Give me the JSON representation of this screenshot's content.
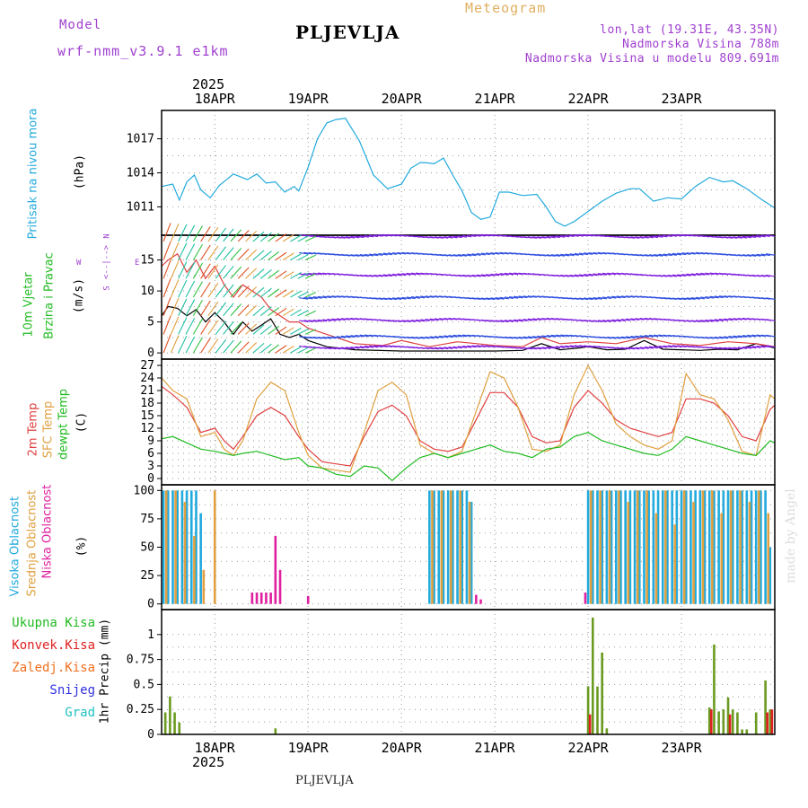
{
  "header": {
    "model_label": "Model",
    "model_name": "wrf-nmm_v3.9.1 e1km",
    "station": "PLJEVLJA",
    "product": "Meteogram",
    "lonlat": "lon,lat (19.31E, 43.35N)",
    "altitude": "Nadmorska Visina 788m",
    "model_altitude": "Nadmorska Visina u modelu 809.691m",
    "footer_station": "PLJEVLJA",
    "watermark": "made by Angel",
    "year": "2025",
    "colors": {
      "model": "#a040d0",
      "station": "#000000",
      "product": "#e0b060",
      "lonlat": "#a040d0"
    }
  },
  "x_axis": {
    "days": [
      "18APR",
      "19APR",
      "20APR",
      "21APR",
      "22APR",
      "23APR"
    ],
    "day_positions": [
      1,
      2,
      3,
      4,
      5,
      6
    ],
    "range": [
      0.43,
      7.0
    ],
    "year": "2025"
  },
  "panels": {
    "pressure": {
      "label": "Pritisak na nivou mora",
      "unit": "(hPa)",
      "label_color": "#22aadd"
    },
    "wind": {
      "label1": "10m Vjetar",
      "label2": "Brzina i Pravac",
      "unit": "(m/s)",
      "label_color": "#22bb22",
      "compass": [
        "N",
        "<--|-->",
        "W",
        "E",
        "S"
      ]
    },
    "temp": {
      "label1": "2m Temp",
      "label2": "SFC Temp",
      "label3": "dewpt Temp",
      "unit": "(C)",
      "colors": [
        "#e04040",
        "#e0a040",
        "#20bb20"
      ]
    },
    "cloud": {
      "label1": "Visoka Oblacnost",
      "label2": "Srednja Oblacnost",
      "label3": "Niska Oblacnost",
      "unit": "(%)",
      "colors": [
        "#22aadd",
        "#e0a040",
        "#e020a0"
      ]
    },
    "precip": {
      "labels": [
        "Ukupna Kisa",
        "Konvek.Kisa",
        "Zaledj.Kisa",
        "Snijeg",
        "Grad"
      ],
      "unit": "1hr Precip (mm)",
      "colors": [
        "#20bb20",
        "#e02020",
        "#f07020",
        "#3030e0",
        "#20c0c0"
      ]
    }
  },
  "chart_data": [
    {
      "type": "line",
      "title": "Pritisak na nivou mora",
      "ylabel": "(hPa)",
      "ylim": [
        1008.5,
        1019.5
      ],
      "yticks": [
        1011,
        1014,
        1017
      ],
      "series": [
        {
          "color": "#22aadd",
          "x": [
            0.43,
            0.55,
            0.62,
            0.7,
            0.78,
            0.85,
            0.95,
            1.05,
            1.2,
            1.35,
            1.45,
            1.55,
            1.65,
            1.75,
            1.85,
            1.9,
            2.0,
            2.1,
            2.2,
            2.3,
            2.4,
            2.55,
            2.7,
            2.85,
            3.0,
            3.1,
            3.2,
            3.25,
            3.35,
            3.45,
            3.55,
            3.65,
            3.75,
            3.85,
            3.95,
            4.05,
            4.15,
            4.3,
            4.45,
            4.55,
            4.65,
            4.75,
            4.85,
            5.0,
            5.15,
            5.3,
            5.45,
            5.55,
            5.7,
            5.85,
            6.0,
            6.15,
            6.3,
            6.45,
            6.55,
            6.7,
            6.85,
            7.0
          ],
          "y": [
            1012.8,
            1013.0,
            1011.6,
            1013.2,
            1013.8,
            1012.5,
            1011.8,
            1012.9,
            1013.9,
            1013.4,
            1013.9,
            1013.1,
            1013.2,
            1012.3,
            1012.8,
            1012.4,
            1014.5,
            1017.0,
            1018.4,
            1018.7,
            1018.8,
            1016.8,
            1013.8,
            1012.6,
            1013.0,
            1014.4,
            1014.9,
            1014.9,
            1014.8,
            1015.3,
            1013.8,
            1012.4,
            1010.5,
            1009.9,
            1010.1,
            1012.3,
            1012.3,
            1012.0,
            1012.1,
            1011.0,
            1009.7,
            1009.3,
            1009.7,
            1010.6,
            1011.5,
            1012.2,
            1012.6,
            1012.6,
            1011.5,
            1011.8,
            1011.7,
            1012.8,
            1013.6,
            1013.2,
            1013.3,
            1012.6,
            1011.7,
            1010.9
          ]
        }
      ]
    },
    {
      "type": "line",
      "title": "10m Vjetar Brzina i Pravac",
      "ylabel": "(m/s)",
      "ylim": [
        -1,
        19
      ],
      "yticks": [
        0,
        5,
        10,
        15
      ],
      "series": [
        {
          "name": "speed",
          "color": "#000000",
          "x": [
            0.43,
            0.5,
            0.6,
            0.7,
            0.8,
            0.9,
            1.0,
            1.1,
            1.2,
            1.3,
            1.4,
            1.5,
            1.6,
            1.7,
            1.8,
            1.9,
            2.0,
            2.2,
            2.5,
            3.0,
            3.5,
            4.0,
            4.3,
            4.5,
            4.7,
            4.9,
            5.0,
            5.2,
            5.4,
            5.6,
            5.8,
            6.0,
            6.2,
            6.4,
            6.6,
            6.8,
            7.0
          ],
          "y": [
            6,
            7.5,
            7.2,
            6.0,
            7.0,
            5.0,
            6.5,
            5.0,
            3.0,
            5.0,
            3.5,
            4.5,
            5.5,
            3.0,
            2.5,
            3.0,
            2.0,
            1.0,
            0.5,
            0.3,
            0.3,
            0.3,
            0.4,
            1.5,
            0.5,
            0.8,
            1.0,
            0.5,
            0.6,
            2.0,
            0.6,
            0.5,
            0.4,
            0.6,
            0.5,
            1.5,
            0.8
          ]
        },
        {
          "name": "gust",
          "color": "#e04040",
          "x": [
            0.43,
            0.5,
            0.6,
            0.7,
            0.8,
            0.9,
            1.0,
            1.1,
            1.2,
            1.3,
            1.4,
            1.5,
            1.6,
            1.7,
            1.8,
            1.9,
            2.0,
            2.2,
            2.5,
            2.8,
            3.0,
            3.3,
            3.6,
            4.0,
            4.3,
            4.5,
            4.7,
            5.0,
            5.3,
            5.6,
            5.9,
            6.2,
            6.5,
            6.8,
            7.0
          ],
          "y": [
            14,
            15,
            16,
            13,
            15,
            12,
            14,
            11,
            9,
            11,
            10,
            9,
            7,
            6,
            5,
            5,
            4,
            3,
            1.5,
            1.2,
            2.0,
            1.0,
            1.8,
            1.2,
            1.0,
            2.5,
            1.5,
            1.8,
            1.5,
            2.5,
            1.5,
            1.2,
            1.8,
            1.5,
            1.0
          ]
        }
      ]
    },
    {
      "type": "line",
      "title": "2m Temp / SFC Temp / dewpt Temp",
      "ylabel": "(C)",
      "ylim": [
        -1.5,
        28.5
      ],
      "yticks": [
        0,
        3,
        6,
        9,
        12,
        15,
        18,
        21,
        24,
        27
      ],
      "series": [
        {
          "name": "2m Temp",
          "color": "#e04040",
          "x": [
            0.43,
            0.55,
            0.7,
            0.85,
            1.0,
            1.1,
            1.2,
            1.3,
            1.45,
            1.6,
            1.75,
            1.9,
            2.0,
            2.15,
            2.3,
            2.45,
            2.6,
            2.75,
            2.9,
            3.05,
            3.2,
            3.35,
            3.5,
            3.65,
            3.8,
            3.95,
            4.1,
            4.25,
            4.4,
            4.55,
            4.7,
            4.85,
            5.0,
            5.15,
            5.3,
            5.45,
            5.6,
            5.75,
            5.9,
            6.05,
            6.2,
            6.35,
            6.5,
            6.65,
            6.8,
            6.95,
            7.0
          ],
          "y": [
            22,
            20,
            17,
            11,
            12,
            9,
            7,
            10,
            15,
            17,
            15,
            10,
            7,
            4,
            3.5,
            3,
            10,
            16,
            17.5,
            15,
            9,
            7,
            6.5,
            7.5,
            14,
            20.5,
            20.5,
            17,
            10,
            8.5,
            9,
            17,
            21,
            18,
            14,
            12,
            11,
            10,
            11,
            19,
            19,
            18,
            15,
            10,
            9,
            16.5,
            17.5
          ]
        },
        {
          "name": "SFC Temp",
          "color": "#e0a040",
          "x": [
            0.43,
            0.55,
            0.7,
            0.85,
            1.0,
            1.1,
            1.2,
            1.3,
            1.45,
            1.6,
            1.75,
            1.9,
            2.0,
            2.15,
            2.3,
            2.45,
            2.6,
            2.75,
            2.9,
            3.05,
            3.2,
            3.35,
            3.5,
            3.65,
            3.8,
            3.95,
            4.1,
            4.25,
            4.4,
            4.55,
            4.7,
            4.85,
            5.0,
            5.15,
            5.3,
            5.45,
            5.6,
            5.75,
            5.9,
            6.05,
            6.2,
            6.35,
            6.5,
            6.65,
            6.8,
            6.95,
            7.0
          ],
          "y": [
            24,
            21,
            19,
            10,
            11,
            7,
            5.5,
            9,
            19,
            23,
            21,
            11,
            5.5,
            2.5,
            2,
            1.5,
            11,
            21,
            23,
            20,
            8,
            6,
            5,
            6.5,
            16,
            25.5,
            24,
            17,
            7,
            6.5,
            8,
            20,
            27,
            21,
            13,
            10,
            8,
            7,
            9,
            25,
            20,
            19,
            14,
            6.5,
            5.5,
            20,
            19
          ]
        },
        {
          "name": "dewpt Temp",
          "color": "#20bb20",
          "x": [
            0.43,
            0.55,
            0.7,
            0.85,
            1.0,
            1.1,
            1.2,
            1.3,
            1.45,
            1.6,
            1.75,
            1.9,
            2.0,
            2.15,
            2.3,
            2.45,
            2.6,
            2.75,
            2.9,
            3.05,
            3.2,
            3.35,
            3.5,
            3.65,
            3.8,
            3.95,
            4.1,
            4.25,
            4.4,
            4.55,
            4.7,
            4.85,
            5.0,
            5.15,
            5.3,
            5.45,
            5.6,
            5.75,
            5.9,
            6.05,
            6.2,
            6.35,
            6.5,
            6.65,
            6.8,
            6.95,
            7.0
          ],
          "y": [
            9.5,
            10,
            8.5,
            7,
            6.5,
            6,
            5.5,
            6,
            6.5,
            5.5,
            4.5,
            5,
            3,
            2.5,
            1,
            0.5,
            3,
            2.5,
            -0.5,
            2.5,
            5,
            6,
            5,
            6,
            7,
            8,
            6.5,
            6,
            5,
            7,
            7.5,
            10,
            11,
            9,
            8,
            7,
            6,
            5.5,
            7,
            10,
            9,
            8,
            7,
            6,
            5.5,
            9,
            8.5
          ]
        }
      ]
    },
    {
      "type": "bar",
      "title": "Visoka / Srednja / Niska Oblacnost",
      "ylabel": "(%)",
      "ylim": [
        -5,
        105
      ],
      "yticks": [
        0,
        25,
        50,
        75,
        100
      ],
      "series": [
        {
          "name": "Visoka Oblacnost",
          "color": "#22aadd",
          "x": [
            0.45,
            0.5,
            0.55,
            0.6,
            0.65,
            0.7,
            0.75,
            0.8,
            0.85,
            3.3,
            3.35,
            3.4,
            3.45,
            3.5,
            3.55,
            3.6,
            3.65,
            3.7,
            3.75,
            5.0,
            5.05,
            5.1,
            5.15,
            5.2,
            5.25,
            5.3,
            5.35,
            5.4,
            5.45,
            5.5,
            5.55,
            5.6,
            5.65,
            5.7,
            5.75,
            5.8,
            5.85,
            5.9,
            5.95,
            6.0,
            6.05,
            6.1,
            6.15,
            6.2,
            6.25,
            6.3,
            6.35,
            6.4,
            6.45,
            6.5,
            6.55,
            6.6,
            6.65,
            6.7,
            6.75,
            6.8,
            6.85,
            6.9,
            6.95
          ],
          "y": [
            100,
            100,
            100,
            100,
            100,
            100,
            100,
            100,
            80,
            100,
            100,
            100,
            100,
            100,
            100,
            100,
            100,
            100,
            90,
            100,
            100,
            100,
            100,
            100,
            100,
            100,
            100,
            100,
            100,
            100,
            100,
            100,
            100,
            100,
            100,
            100,
            100,
            100,
            100,
            100,
            100,
            100,
            100,
            100,
            100,
            100,
            100,
            100,
            100,
            100,
            100,
            100,
            100,
            100,
            100,
            100,
            100,
            100,
            50
          ]
        },
        {
          "name": "Srednja Oblacnost",
          "color": "#e0a040",
          "x": [
            0.48,
            0.58,
            0.68,
            0.78,
            0.88,
            1.0,
            3.33,
            3.43,
            3.53,
            3.63,
            3.73,
            5.03,
            5.13,
            5.23,
            5.33,
            5.43,
            5.53,
            5.63,
            5.73,
            5.83,
            5.93,
            6.03,
            6.13,
            6.23,
            6.33,
            6.43,
            6.53,
            6.63,
            6.73,
            6.83,
            6.93
          ],
          "y": [
            100,
            100,
            90,
            60,
            30,
            100,
            100,
            100,
            100,
            100,
            90,
            100,
            100,
            100,
            100,
            90,
            100,
            100,
            80,
            100,
            70,
            100,
            90,
            100,
            100,
            80,
            100,
            100,
            90,
            100,
            80
          ]
        },
        {
          "name": "Niska Oblacnost",
          "color": "#e020a0",
          "x": [
            1.4,
            1.45,
            1.5,
            1.55,
            1.6,
            1.65,
            1.7,
            2.0,
            3.8,
            3.85,
            4.97
          ],
          "y": [
            10,
            10,
            10,
            10,
            10,
            60,
            30,
            7,
            8,
            4,
            10
          ]
        }
      ]
    },
    {
      "type": "bar",
      "title": "1hr Precip",
      "ylabel": "1hr Precip (mm)",
      "ylim": [
        0,
        1.25
      ],
      "yticks": [
        0,
        0.25,
        0.5,
        0.75,
        1
      ],
      "series": [
        {
          "name": "Ukupna Kisa",
          "color": "#6a9a20",
          "x": [
            0.47,
            0.52,
            0.57,
            0.62,
            0.7,
            1.65,
            5.0,
            5.05,
            5.1,
            5.15,
            5.2,
            6.3,
            6.35,
            6.4,
            6.45,
            6.5,
            6.55,
            6.6,
            6.65,
            6.7,
            6.75,
            6.8,
            6.9,
            6.95
          ],
          "y": [
            0.22,
            0.38,
            0.22,
            0.12,
            0.0,
            0.06,
            0.48,
            1.17,
            0.48,
            0.82,
            0.06,
            0.27,
            0.9,
            0.23,
            0.25,
            0.37,
            0.25,
            0.22,
            0.05,
            0.05,
            0.0,
            0.22,
            0.54,
            0.25
          ]
        },
        {
          "name": "Konvek.Kisa",
          "color": "#e02020",
          "x": [
            5.02,
            6.32,
            6.52,
            6.92,
            6.97
          ],
          "y": [
            0.2,
            0.25,
            0.2,
            0.22,
            0.25
          ]
        }
      ]
    }
  ]
}
